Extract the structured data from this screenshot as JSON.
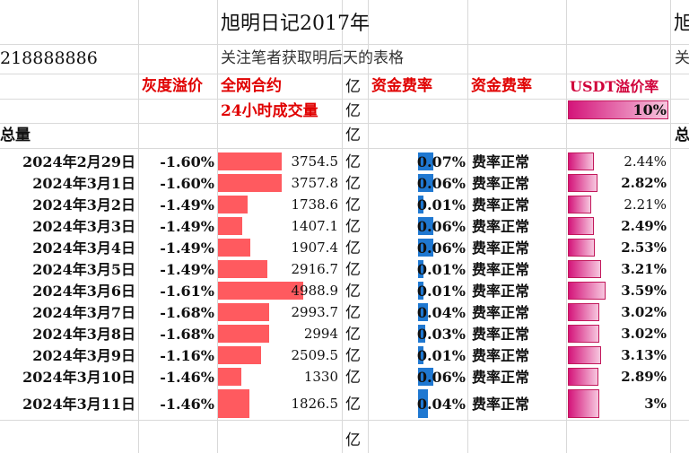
{
  "sheet": {
    "title": "旭明日记2017年",
    "title_right": "旭",
    "id_number": "218888886",
    "subtitle": "关注笔者获取明后天的表格",
    "subtitle_right": "关",
    "headers": {
      "grayscale_premium": "灰度溢价",
      "network_contracts": "全网合约",
      "unit": "亿",
      "funding_rate_1": "资金费率",
      "funding_rate_2": "资金费率",
      "usdt_premium": "USDT溢价率",
      "volume_24h": "24小时成交量",
      "usdt_header_value": "10%",
      "total_label": "总量",
      "total_right": "总"
    },
    "rows": [
      {
        "date": "2024年2月29日",
        "premium": "-1.60%",
        "volume": "3754.5",
        "unit": "亿",
        "funding": "0.07%",
        "status": "费率正常",
        "usdt": "2.44%"
      },
      {
        "date": "2024年3月1日",
        "premium": "-1.60%",
        "volume": "3757.8",
        "unit": "亿",
        "funding": "0.06%",
        "status": "费率正常",
        "usdt": "2.82%"
      },
      {
        "date": "2024年3月2日",
        "premium": "-1.49%",
        "volume": "1738.6",
        "unit": "亿",
        "funding": "0.01%",
        "status": "费率正常",
        "usdt": "2.21%"
      },
      {
        "date": "2024年3月3日",
        "premium": "-1.49%",
        "volume": "1407.1",
        "unit": "亿",
        "funding": "0.06%",
        "status": "费率正常",
        "usdt": "2.49%"
      },
      {
        "date": "2024年3月4日",
        "premium": "-1.49%",
        "volume": "1907.4",
        "unit": "亿",
        "funding": "0.06%",
        "status": "费率正常",
        "usdt": "2.53%"
      },
      {
        "date": "2024年3月5日",
        "premium": "-1.49%",
        "volume": "2916.7",
        "unit": "亿",
        "funding": "0.01%",
        "status": "费率正常",
        "usdt": "3.21%"
      },
      {
        "date": "2024年3月6日",
        "premium": "-1.61%",
        "volume": "4988.9",
        "unit": "亿",
        "funding": "0.01%",
        "status": "费率正常",
        "usdt": "3.59%"
      },
      {
        "date": "2024年3月7日",
        "premium": "-1.68%",
        "volume": "2993.7",
        "unit": "亿",
        "funding": "0.04%",
        "status": "费率正常",
        "usdt": "3.02%"
      },
      {
        "date": "2024年3月8日",
        "premium": "-1.68%",
        "volume": "2994",
        "unit": "亿",
        "funding": "0.03%",
        "status": "费率正常",
        "usdt": "3.02%"
      },
      {
        "date": "2024年3月9日",
        "premium": "-1.16%",
        "volume": "2509.5",
        "unit": "亿",
        "funding": "0.01%",
        "status": "费率正常",
        "usdt": "3.13%"
      },
      {
        "date": "2024年3月10日",
        "premium": "-1.46%",
        "volume": "1330",
        "unit": "亿",
        "funding": "0.06%",
        "status": "费率正常",
        "usdt": "2.89%"
      },
      {
        "date": "2024年3月11日",
        "premium": "-1.46%",
        "volume": "1826.5",
        "unit": "亿",
        "funding": "0.04%",
        "status": "费率正常",
        "usdt": "3%"
      }
    ],
    "volume_bar_fractions": [
      0.75,
      0.75,
      0.35,
      0.28,
      0.38,
      0.58,
      1.0,
      0.6,
      0.6,
      0.5,
      0.27,
      0.37
    ],
    "funding_bar_fractions": [
      0.75,
      0.75,
      0.25,
      0.75,
      0.75,
      0.25,
      0.25,
      0.5,
      0.35,
      0.25,
      0.75,
      0.5
    ],
    "usdt_bar_fractions": [
      0.68,
      0.79,
      0.62,
      0.7,
      0.71,
      0.89,
      1.0,
      0.84,
      0.84,
      0.87,
      0.81,
      0.84
    ],
    "colors": {
      "header_red": "#e00000",
      "volume_bar": "#ff5a5f",
      "funding_bar": "#1f78d1",
      "usdt_bar": "#d4157a",
      "grid": "#d9d9d9"
    }
  }
}
